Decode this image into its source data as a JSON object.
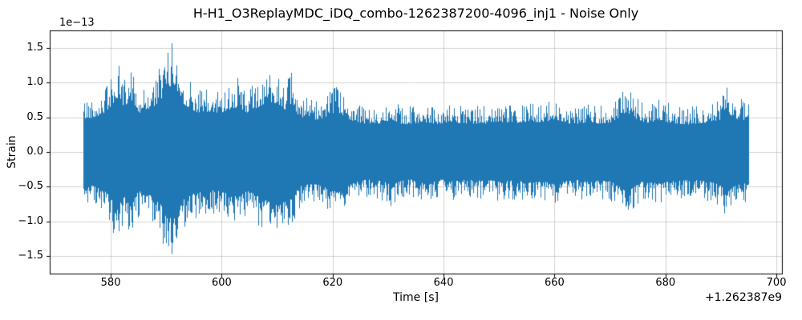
{
  "figure": {
    "background": "#ffffff"
  },
  "chart_data": {
    "type": "line",
    "title": "H-H1_O3ReplayMDC_iDQ_combo-1262387200-4096_inj1 - Noise Only",
    "xlabel": "Time [s]",
    "ylabel": "Strain",
    "y_scale_factor_label": "1e−13",
    "x_offset_label": "+1.262387e9",
    "line_color": "#1f77b4",
    "grid": true,
    "grid_color": "#b0b0b0",
    "frame_color": "#000000",
    "xlim": [
      569,
      701
    ],
    "ylim": [
      -1.75,
      1.75
    ],
    "x_data_range": [
      575,
      695
    ],
    "x_ticks": [
      580,
      600,
      620,
      640,
      660,
      680,
      700
    ],
    "x_tick_labels": [
      "580",
      "600",
      "620",
      "640",
      "660",
      "680",
      "700"
    ],
    "y_ticks": [
      -1.5,
      -1.0,
      -0.5,
      0.0,
      0.5,
      1.0,
      1.5
    ],
    "y_tick_labels": [
      "−1.5",
      "−1.0",
      "−0.5",
      "0.0",
      "0.5",
      "1.0",
      "1.5"
    ],
    "units_note": "y values in units of 1e-13 strain; x values are seconds after +1.262387e9",
    "noise_seed": 42,
    "envelope": {
      "description": "approximate peak |strain| envelope (x1e-13) of the noise time series vs time (s after offset)",
      "t": [
        575,
        577,
        579,
        580.5,
        581.5,
        582.5,
        583.5,
        585,
        586.5,
        588,
        589.5,
        590.5,
        591.2,
        592,
        593,
        594.5,
        596,
        598,
        600,
        601.5,
        603,
        604.5,
        606,
        607.5,
        608.5,
        609.5,
        610.5,
        611.5,
        612.5,
        614,
        616,
        618,
        619.5,
        620.5,
        622,
        624,
        626,
        628,
        629.5,
        630.5,
        632,
        634,
        636,
        638,
        640,
        642,
        644,
        646,
        648,
        650,
        652,
        654,
        656,
        658,
        660,
        661,
        662.5,
        664,
        666,
        668,
        670,
        671.5,
        672.8,
        674,
        675.5,
        677,
        678.5,
        680,
        682,
        684,
        686,
        688,
        690,
        690.8,
        691.5,
        692.5,
        694,
        695
      ],
      "amplitude": [
        0.78,
        0.82,
        0.95,
        1.18,
        1.25,
        1.05,
        1.3,
        0.92,
        1.0,
        1.1,
        1.35,
        1.55,
        1.65,
        1.42,
        1.15,
        1.02,
        0.92,
        0.9,
        0.95,
        1.02,
        1.08,
        0.92,
        1.02,
        1.12,
        1.2,
        1.18,
        1.12,
        1.0,
        1.15,
        0.82,
        0.76,
        0.8,
        0.88,
        0.95,
        0.85,
        0.72,
        0.66,
        0.67,
        0.72,
        0.8,
        0.68,
        0.66,
        0.72,
        0.68,
        0.66,
        0.7,
        0.66,
        0.68,
        0.66,
        0.72,
        0.68,
        0.7,
        0.72,
        0.7,
        0.78,
        0.72,
        0.68,
        0.66,
        0.72,
        0.68,
        0.7,
        0.8,
        0.95,
        0.85,
        0.72,
        0.7,
        0.76,
        0.72,
        0.68,
        0.66,
        0.68,
        0.72,
        0.78,
        1.05,
        0.9,
        0.8,
        0.76,
        0.74
      ]
    }
  }
}
